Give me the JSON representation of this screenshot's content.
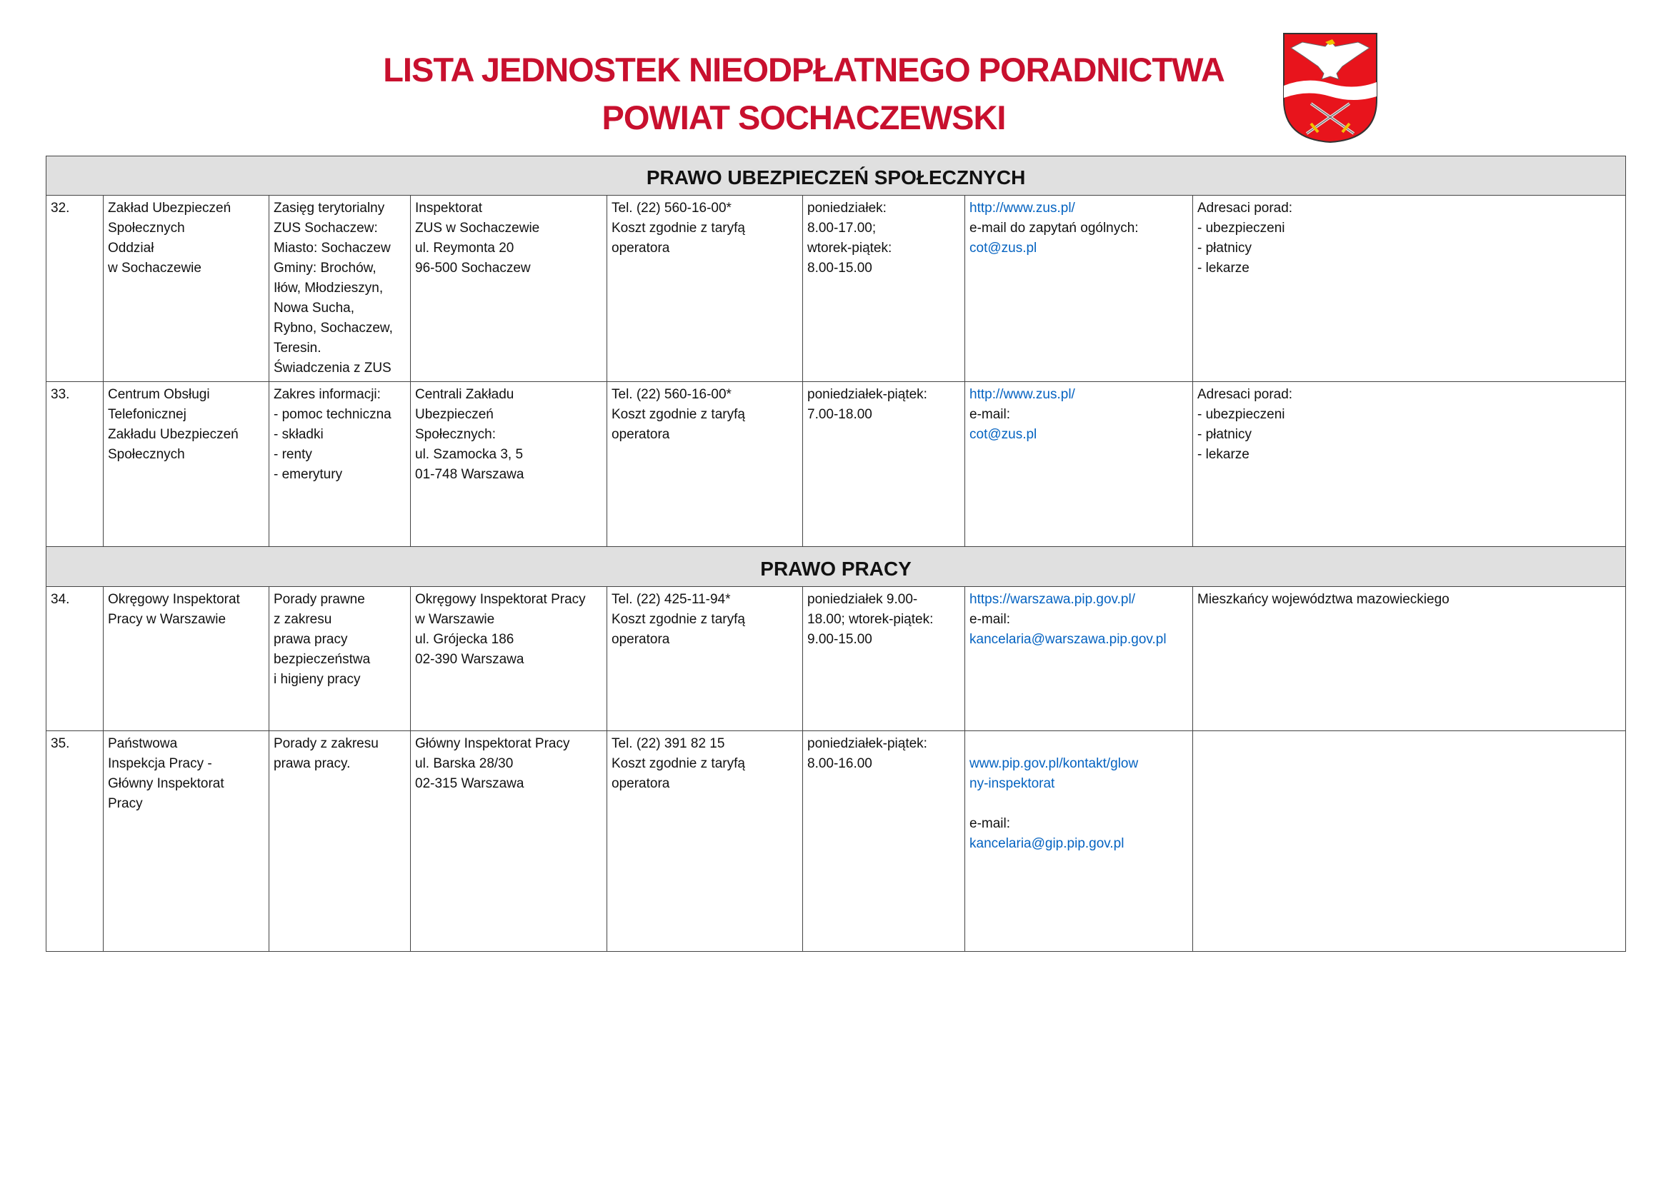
{
  "header": {
    "title_line1": "LISTA JEDNOSTEK NIEODPŁATNEGO PORADNICTWA",
    "title_line2": "POWIAT SOCHACZEWSKI",
    "emblem": "powiat-sochaczewski-coat-of-arms",
    "title_color": "#c8102e"
  },
  "link_color": "#0563c1",
  "sections": [
    {
      "title": "PRAWO  UBEZPIECZEŃ  SPOŁECZNYCH",
      "rows": [
        {
          "no": "32.",
          "cells": [
            [
              {
                "t": "Zakład Ubezpieczeń"
              },
              {
                "t": "Społecznych"
              },
              {
                "t": "Oddział"
              },
              {
                "t": "w Sochaczewie"
              }
            ],
            [
              {
                "t": "Zasięg terytorialny"
              },
              {
                "t": "ZUS Sochaczew:"
              },
              {
                "t": "Miasto: Sochaczew"
              },
              {
                "t": "Gminy: Brochów,"
              },
              {
                "t": "Iłów, Młodzieszyn,"
              },
              {
                "t": "Nowa Sucha,"
              },
              {
                "t": "Rybno, Sochaczew,"
              },
              {
                "t": "Teresin."
              },
              {
                "t": "Świadczenia z ZUS"
              }
            ],
            [
              {
                "t": "Inspektorat"
              },
              {
                "t": "ZUS w Sochaczewie"
              },
              {
                "t": "ul. Reymonta 20"
              },
              {
                "t": "96-500 Sochaczew"
              }
            ],
            [
              {
                "t": " Tel. (22) 560-16-00*"
              },
              {
                "t": "Koszt zgodnie z taryfą"
              },
              {
                "t": "operatora"
              }
            ],
            [
              {
                "t": "poniedziałek:"
              },
              {
                "t": "8.00-17.00;"
              },
              {
                "t": "wtorek-piątek:"
              },
              {
                "t": "8.00-15.00"
              }
            ],
            [
              {
                "t": "http://www.zus.pl/",
                "link": true
              },
              {
                "t": "e-mail do zapytań ogólnych:"
              },
              {
                "t": "cot@zus.pl",
                "link": true
              }
            ],
            [
              {
                "t": "Adresaci porad:"
              },
              {
                "t": "- ubezpieczeni"
              },
              {
                "t": "- płatnicy"
              },
              {
                "t": "- lekarze"
              }
            ]
          ]
        },
        {
          "no": "33.",
          "cells": [
            [
              {
                "t": "Centrum Obsługi"
              },
              {
                "t": "Telefonicznej"
              },
              {
                "t": "Zakładu Ubezpieczeń"
              },
              {
                "t": "Społecznych"
              }
            ],
            [
              {
                "t": "Zakres informacji:"
              },
              {
                "t": "- pomoc techniczna"
              },
              {
                "t": "- składki"
              },
              {
                "t": "- renty"
              },
              {
                "t": "- emerytury"
              }
            ],
            [
              {
                "t": "Centrali Zakładu"
              },
              {
                "t": "Ubezpieczeń"
              },
              {
                "t": "Społecznych:"
              },
              {
                "t": "ul. Szamocka 3, 5"
              },
              {
                "t": "01-748 Warszawa"
              }
            ],
            [
              {
                "t": " Tel. (22) 560-16-00*"
              },
              {
                "t": "Koszt zgodnie z taryfą"
              },
              {
                "t": "operatora"
              }
            ],
            [
              {
                "t": "poniedziałek-piątek:"
              },
              {
                "t": "7.00-18.00"
              }
            ],
            [
              {
                "t": "http://www.zus.pl/",
                "link": true
              },
              {
                "t": "e-mail:"
              },
              {
                "t": "cot@zus.pl",
                "link": true
              }
            ],
            [
              {
                "t": "Adresaci porad:"
              },
              {
                "t": "- ubezpieczeni"
              },
              {
                "t": "- płatnicy"
              },
              {
                "t": "- lekarze"
              }
            ]
          ]
        }
      ]
    },
    {
      "title": "PRAWO  PRACY",
      "rows": [
        {
          "no": "34.",
          "cells": [
            [
              {
                "t": "Okręgowy Inspektorat"
              },
              {
                "t": "Pracy w Warszawie"
              }
            ],
            [
              {
                "t": "Porady prawne"
              },
              {
                "t": "z  zakresu"
              },
              {
                "t": "prawa pracy"
              },
              {
                "t": "bezpieczeństwa"
              },
              {
                "t": "i higieny pracy"
              }
            ],
            [
              {
                "t": "Okręgowy Inspektorat Pracy"
              },
              {
                "t": "w Warszawie"
              },
              {
                "t": "ul. Grójecka 186"
              },
              {
                "t": "02-390 Warszawa"
              }
            ],
            [
              {
                "t": "Tel. (22) 425-11-94*"
              },
              {
                "t": "Koszt zgodnie z taryfą"
              },
              {
                "t": "operatora"
              }
            ],
            [
              {
                "t": "poniedziałek 9.00-"
              },
              {
                "t": "18.00; wtorek-piątek:"
              },
              {
                "t": "9.00-15.00"
              }
            ],
            [
              {
                "t": "https://warszawa.pip.gov.pl/",
                "link": true
              },
              {
                "t": "e-mail:"
              },
              {
                "t": "kancelaria@warszawa.pip.gov.pl",
                "link": true
              }
            ],
            [
              {
                "t": "Mieszkańcy województwa mazowieckiego"
              }
            ]
          ]
        },
        {
          "no": "35.",
          "cells": [
            [
              {
                "t": "Państwowa"
              },
              {
                "t": "Inspekcja   Pracy   -"
              },
              {
                "t": "Główny Inspektorat"
              },
              {
                "t": "Pracy"
              }
            ],
            [
              {
                "t": "Porady z zakresu"
              },
              {
                "t": "prawa pracy."
              }
            ],
            [
              {
                "t": "Główny Inspektorat Pracy"
              },
              {
                "t": "ul. Barska 28/30"
              },
              {
                "t": "02-315 Warszawa"
              }
            ],
            [
              {
                "t": "Tel. (22) 391 82 15"
              },
              {
                "t": "Koszt zgodnie z taryfą"
              },
              {
                "t": "operatora"
              }
            ],
            [
              {
                "t": "poniedziałek-piątek:"
              },
              {
                "t": "8.00-16.00"
              }
            ],
            [
              {
                "t": ""
              },
              {
                "t": "www.pip.gov.pl/kontakt/glow",
                "link": true
              },
              {
                "t": "ny-inspektorat",
                "link": true
              },
              {
                "t": ""
              },
              {
                "t": "e-mail:"
              },
              {
                "t": "kancelaria@gip.pip.gov.pl",
                "link": true
              }
            ],
            []
          ]
        }
      ]
    }
  ]
}
